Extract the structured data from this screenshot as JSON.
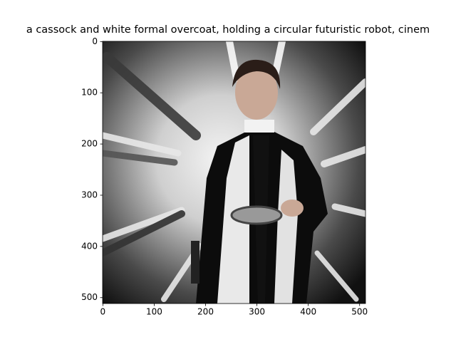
{
  "chart_data": {
    "type": "image",
    "title": "a cassock and white formal overcoat, holding a circular futuristic robot, cinem",
    "xlim": [
      -0.5,
      511.5
    ],
    "ylim": [
      511.5,
      -0.5
    ],
    "xticks": [
      0,
      100,
      200,
      300,
      400,
      500
    ],
    "yticks": [
      0,
      100,
      200,
      300,
      400,
      500
    ]
  }
}
